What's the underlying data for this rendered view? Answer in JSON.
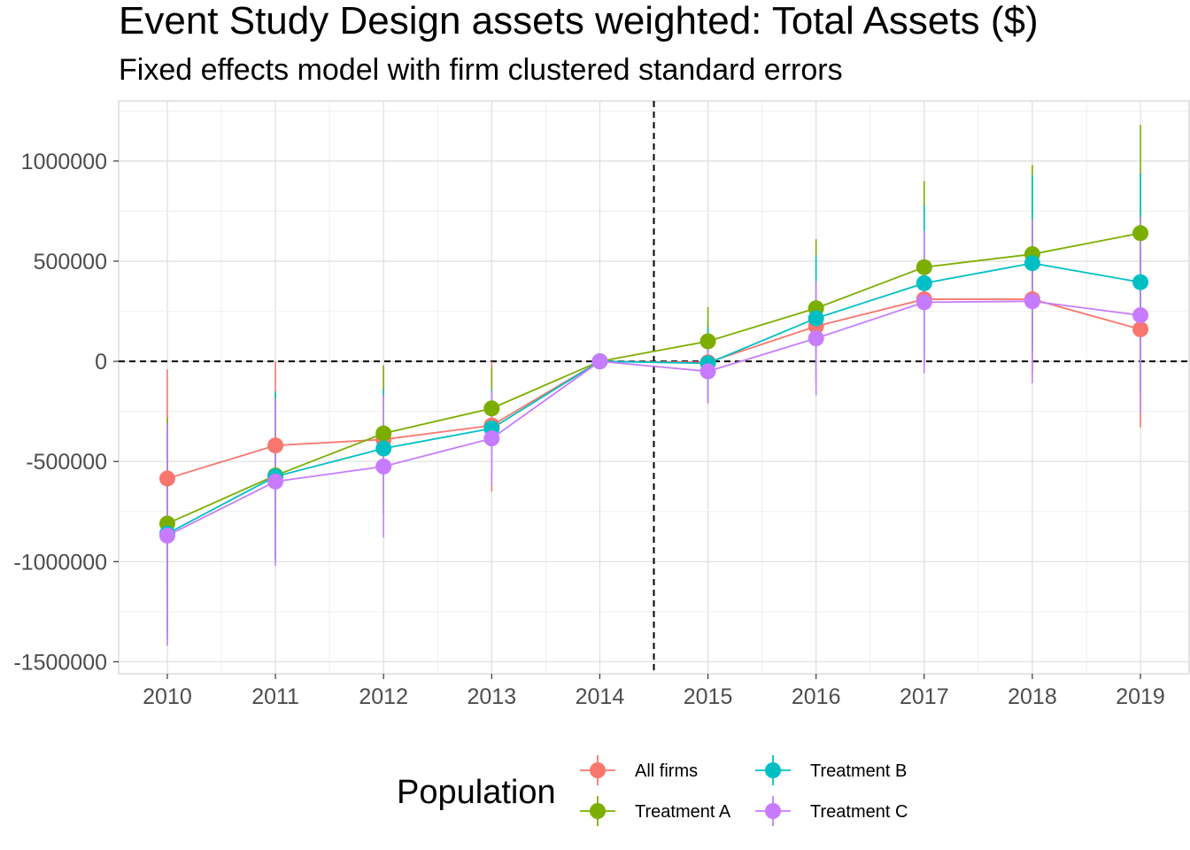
{
  "chart_data": {
    "type": "line",
    "title": "Event Study Design assets weighted: Total Assets ($)",
    "subtitle": "Fixed effects model with firm clustered standard errors",
    "x": [
      2010,
      2011,
      2012,
      2013,
      2014,
      2015,
      2016,
      2017,
      2018,
      2019
    ],
    "x_tick_labels": [
      "2010",
      "2011",
      "2012",
      "2013",
      "2014",
      "2015",
      "2016",
      "2017",
      "2018",
      "2019"
    ],
    "y_ticks": [
      1000000,
      500000,
      0,
      -500000,
      -1000000,
      -1500000
    ],
    "y_tick_labels": [
      "1000000",
      "500000",
      "0",
      "-500000",
      "-1000000",
      "-1500000"
    ],
    "ylim": [
      -1560000,
      1300000
    ],
    "xlim": [
      2009.55,
      2019.45
    ],
    "vertical_reference_line_x": 2014.5,
    "horizontal_reference_line_y": 0,
    "grid": true,
    "legend": {
      "title": "Population",
      "position": "bottom",
      "entries": [
        "All firms",
        "Treatment A",
        "Treatment B",
        "Treatment C"
      ]
    },
    "series": [
      {
        "name": "All firms",
        "color": "#F8766D",
        "values": [
          -585000,
          -420000,
          -390000,
          -320000,
          0,
          -5000,
          175000,
          310000,
          310000,
          160000
        ],
        "lower": [
          -1130000,
          -840000,
          -760000,
          -650000,
          0,
          -210000,
          -120000,
          -20000,
          -50000,
          -330000
        ],
        "upper": [
          -40000,
          0,
          -20000,
          0,
          0,
          200000,
          470000,
          640000,
          670000,
          650000
        ]
      },
      {
        "name": "Treatment A",
        "color": "#7CAE00",
        "values": [
          -810000,
          -570000,
          -360000,
          -235000,
          0,
          100000,
          265000,
          470000,
          535000,
          640000
        ],
        "lower": [
          -1340000,
          -980000,
          -700000,
          -450000,
          0,
          -70000,
          -80000,
          50000,
          100000,
          100000
        ],
        "upper": [
          -280000,
          -160000,
          -20000,
          -30000,
          0,
          270000,
          610000,
          900000,
          980000,
          1180000
        ]
      },
      {
        "name": "Treatment B",
        "color": "#00BFC4",
        "values": [
          -860000,
          -575000,
          -435000,
          -335000,
          0,
          -10000,
          215000,
          390000,
          490000,
          395000
        ],
        "lower": [
          -1390000,
          -990000,
          -760000,
          -560000,
          0,
          -190000,
          -100000,
          0,
          50000,
          -150000
        ],
        "upper": [
          -330000,
          -150000,
          -140000,
          -140000,
          0,
          170000,
          530000,
          780000,
          930000,
          940000
        ]
      },
      {
        "name": "Treatment C",
        "color": "#C77CFF",
        "values": [
          -870000,
          -600000,
          -525000,
          -385000,
          0,
          -50000,
          115000,
          295000,
          300000,
          230000
        ],
        "lower": [
          -1420000,
          -1020000,
          -880000,
          -620000,
          0,
          -210000,
          -170000,
          -60000,
          -110000,
          -260000
        ],
        "upper": [
          -310000,
          -180000,
          -170000,
          -150000,
          0,
          100000,
          400000,
          650000,
          710000,
          720000
        ]
      }
    ]
  }
}
